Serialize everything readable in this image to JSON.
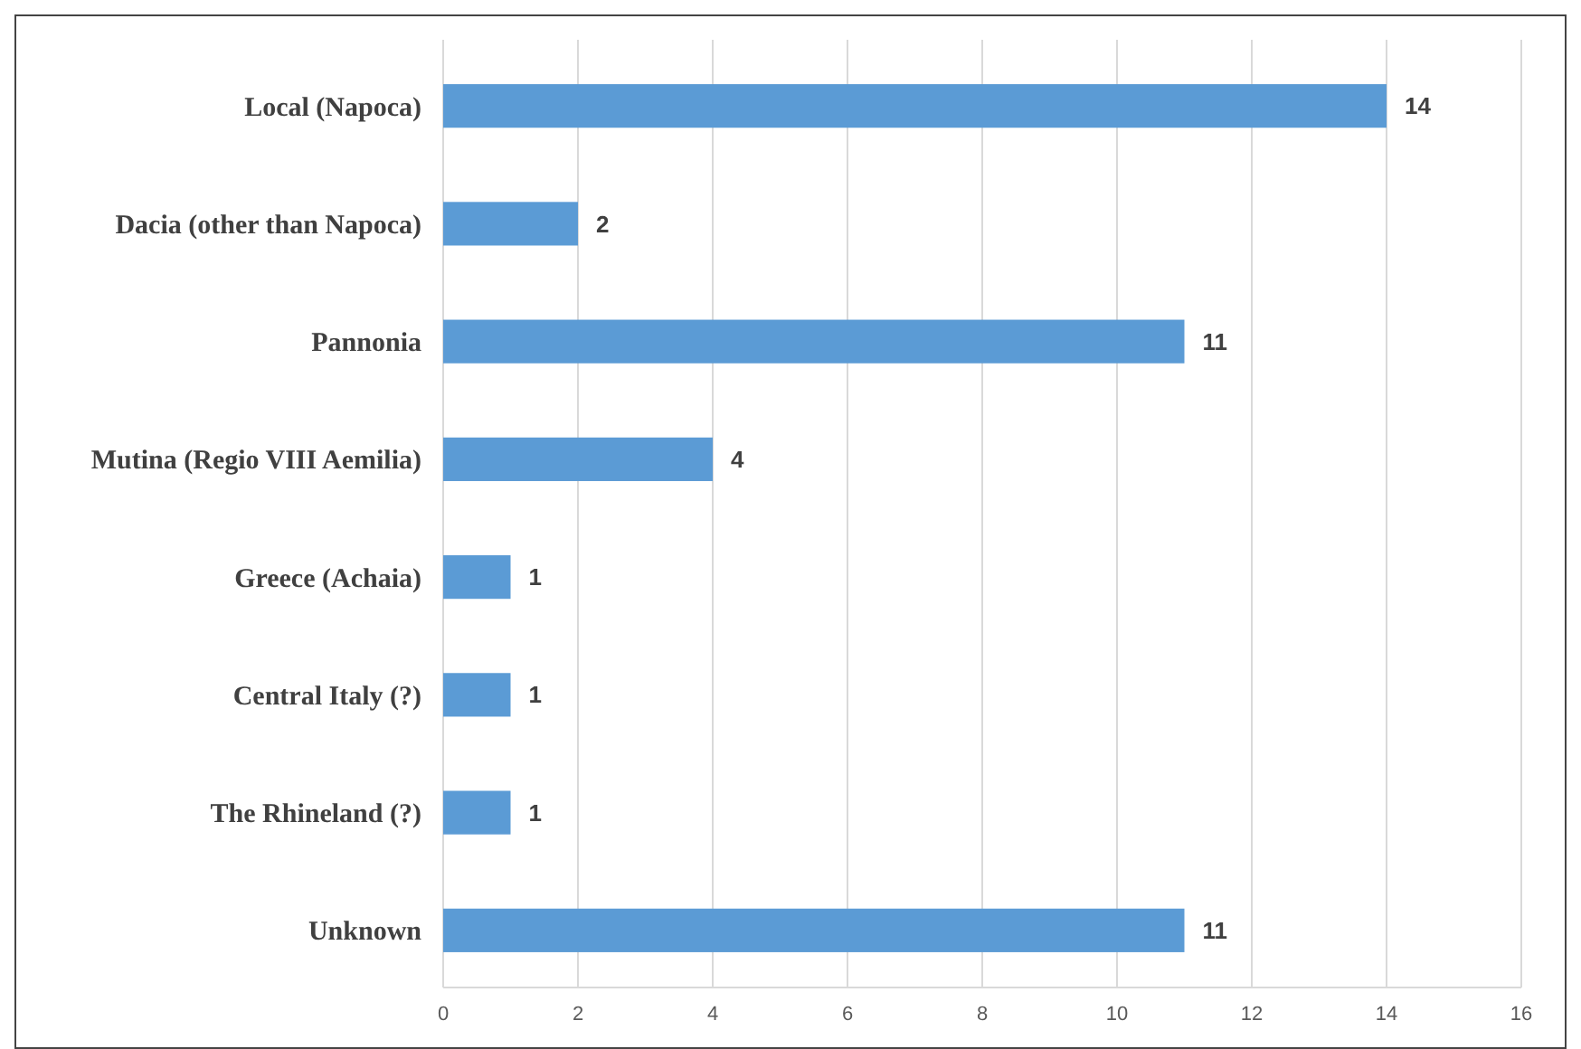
{
  "chart_data": {
    "type": "bar",
    "orientation": "horizontal",
    "categories": [
      "Local (Napoca)",
      "Dacia (other than Napoca)",
      "Pannonia",
      "Mutina (Regio VIII Aemilia)",
      "Greece (Achaia)",
      "Central Italy (?)",
      "The Rhineland (?)",
      "Unknown"
    ],
    "values": [
      14,
      2,
      11,
      4,
      1,
      1,
      1,
      11
    ],
    "color": "#5b9bd5",
    "xlim": [
      0,
      16
    ],
    "xticks": [
      0,
      2,
      4,
      6,
      8,
      10,
      12,
      14,
      16
    ],
    "grid": "x",
    "data_labels": true
  }
}
